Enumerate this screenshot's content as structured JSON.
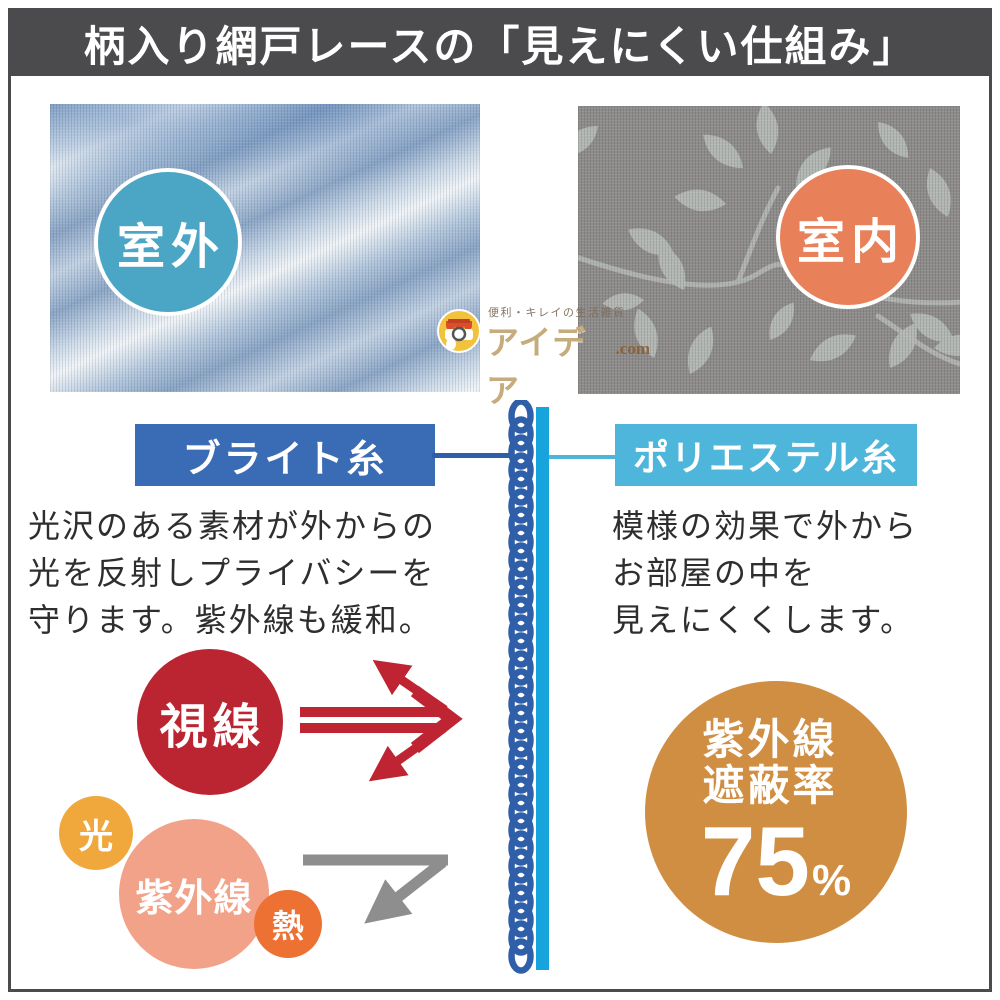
{
  "header": {
    "title": "柄入り網戸レースの「見えにくい仕組み」"
  },
  "photos": {
    "outdoor": {
      "label": "室外"
    },
    "indoor": {
      "label": "室内"
    }
  },
  "watermark": {
    "tagline": "便利・キレイの生活雑貨",
    "brand": "アイデア",
    "suffix": ".com",
    "icon": "shop-camera-badge-icon"
  },
  "threads": {
    "bright": {
      "label": "ブライト糸"
    },
    "polyester": {
      "label": "ポリエステル糸"
    }
  },
  "outside_panel": {
    "lines": {
      "0": "光沢のある素材が外からの",
      "1": "光を反射しプライバシーを",
      "2": "守ります。紫外線も緩和。"
    },
    "bubbles": {
      "gaze": "視線",
      "light": "光",
      "uv": "紫外線",
      "heat": "熱"
    }
  },
  "inside_panel": {
    "lines": {
      "0": "模様の効果で外から",
      "1": "お部屋の中を",
      "2": "見えにくくします。"
    },
    "uv_badge": {
      "line1": "紫外線",
      "line2": "遮蔽率",
      "value": "75",
      "unit": "%"
    }
  },
  "colors": {
    "frame": "#4b4b4e",
    "banner_bg": "#4b4b4e",
    "outdoor_circle": "#4aa6c4",
    "indoor_circle": "#e8815a",
    "bright_label": "#3a6cb5",
    "polyester_label": "#4eb6da",
    "chain_thread": "#2e5fa8",
    "straight_thread": "#17a3dc",
    "gaze_bubble": "#bb2531",
    "light_bubble": "#f0a83d",
    "uv_bubble": "#f2a288",
    "heat_bubble": "#ee7134",
    "uv_badge": "#d08e42",
    "reflect_arrow": "#bf2433",
    "pass_arrow": "#8e8e8e"
  }
}
